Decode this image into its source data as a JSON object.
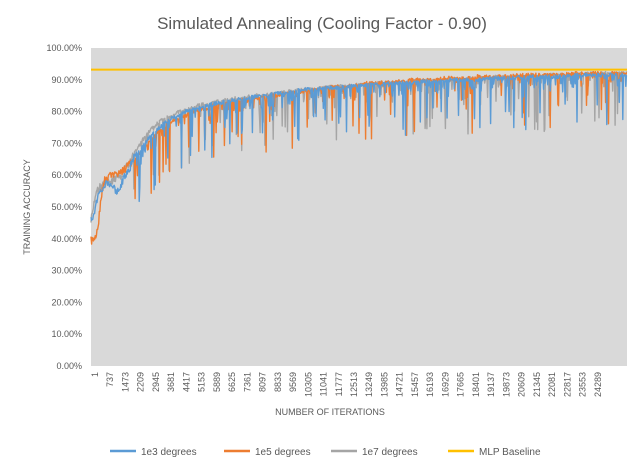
{
  "chart_data": {
    "type": "line",
    "title": "Simulated Annealing (Cooling Factor - 0.90)",
    "xlabel": "NUMBER OF ITERATIONS",
    "ylabel": "TRAINING ACCURACY",
    "ylim": [
      0,
      100
    ],
    "y_ticks": [
      "0.00%",
      "10.00%",
      "20.00%",
      "30.00%",
      "40.00%",
      "50.00%",
      "60.00%",
      "70.00%",
      "80.00%",
      "90.00%",
      "100.00%"
    ],
    "x_ticks": [
      "1",
      "737",
      "1473",
      "2209",
      "2945",
      "3681",
      "4417",
      "5153",
      "5889",
      "6625",
      "7361",
      "8097",
      "8833",
      "9569",
      "10305",
      "11041",
      "11777",
      "12513",
      "13249",
      "13985",
      "14721",
      "15457",
      "16193",
      "16929",
      "17665",
      "18401",
      "19137",
      "19873",
      "20609",
      "21345",
      "22081",
      "22817",
      "23553",
      "24289"
    ],
    "xlim": [
      1,
      25000
    ],
    "grid": false,
    "legend_position": "bottom",
    "series": [
      {
        "name": "1e3 degrees",
        "color": "#5B9BD5",
        "x": [
          1,
          100,
          200,
          300,
          450,
          600,
          800,
          1000,
          1200,
          1400,
          1600,
          1800,
          2000,
          2300,
          2600,
          2900,
          3200,
          3500,
          3800,
          4100,
          4400,
          4700,
          5000,
          5400,
          5800,
          6200,
          6600,
          7000,
          7500,
          8000,
          8500,
          9000,
          9500,
          10000,
          10500,
          11000,
          11500,
          12000,
          12500,
          13000,
          13500,
          14000,
          14500,
          15000,
          15500,
          16000,
          16500,
          17000,
          17500,
          18000,
          18500,
          19000,
          19500,
          20000,
          20500,
          21000,
          21500,
          22000,
          22500,
          23000,
          23500,
          24000,
          24500,
          25000
        ],
        "y": [
          46,
          47,
          50,
          53,
          55,
          57,
          58,
          56,
          55,
          57,
          60,
          62,
          66,
          68,
          71,
          73,
          75,
          77,
          78,
          79,
          80,
          80.5,
          81,
          82,
          82.5,
          83,
          83.5,
          84,
          84.5,
          85,
          85.5,
          86,
          86.5,
          87,
          87,
          87.5,
          87.5,
          88,
          88,
          88.5,
          88.5,
          89,
          89,
          89,
          89.5,
          89.5,
          90,
          90,
          90,
          90,
          90.5,
          90.5,
          90.5,
          91,
          91,
          91,
          91,
          91,
          91.5,
          91.5,
          91.5,
          91.5,
          91.5,
          91.5
        ]
      },
      {
        "name": "1e5 degrees",
        "color": "#ED7D31",
        "x": [
          1,
          100,
          200,
          300,
          400,
          500,
          600,
          800,
          1000,
          1200,
          1400,
          1600,
          1800,
          2000,
          2300,
          2600,
          2900,
          3200,
          3500,
          3800,
          4100,
          4400,
          4700,
          5000,
          5400,
          5800,
          6200,
          6600,
          7000,
          7500,
          8000,
          8500,
          9000,
          9500,
          10000,
          10500,
          11000,
          11500,
          12000,
          12500,
          13000,
          13500,
          14000,
          14500,
          15000,
          15500,
          16000,
          16500,
          17000,
          17500,
          18000,
          18500,
          19000,
          19500,
          20000,
          20500,
          21000,
          21500,
          22000,
          22500,
          23000,
          23500,
          24000,
          24500,
          25000
        ],
        "y": [
          39.5,
          39.5,
          41,
          42,
          48,
          54,
          58,
          59.5,
          60,
          60.5,
          61,
          62,
          63.5,
          65,
          67,
          70,
          72,
          74,
          76,
          77,
          78,
          79,
          80,
          80.5,
          81,
          82,
          82.5,
          83,
          83.5,
          84,
          84.5,
          85,
          85.5,
          86,
          86.5,
          87,
          87.5,
          88,
          88,
          88.5,
          89,
          89,
          89.5,
          89.5,
          90,
          90,
          90,
          90.5,
          90.5,
          90.5,
          91,
          91,
          91,
          91,
          91.5,
          91.5,
          91.5,
          91.5,
          91.5,
          92,
          92,
          92,
          92,
          92,
          92
        ]
      },
      {
        "name": "1e7 degrees",
        "color": "#A5A5A5",
        "x": [
          1,
          100,
          200,
          300,
          400,
          600,
          800,
          1000,
          1200,
          1400,
          1600,
          1800,
          2000,
          2300,
          2600,
          2900,
          3200,
          3500,
          3800,
          4100,
          4400,
          4700,
          5000,
          5400,
          5800,
          6200,
          6600,
          7000,
          7500,
          8000,
          8500,
          9000,
          9500,
          10000,
          10500,
          11000,
          11500,
          12000,
          12500,
          13000,
          13500,
          14000,
          14500,
          15000,
          15500,
          16000,
          16500,
          17000,
          17500,
          18000,
          18500,
          19000,
          19500,
          20000,
          20500,
          21000,
          21500,
          22000,
          22500,
          23000,
          23500,
          24000,
          24500,
          25000
        ],
        "y": [
          46,
          50,
          53,
          55,
          56,
          57,
          58,
          58.5,
          59,
          60,
          62,
          64,
          67,
          70,
          73,
          75,
          77,
          78,
          79,
          80,
          80.5,
          81,
          82,
          82.5,
          83,
          83.5,
          84,
          84.5,
          85,
          85,
          85.5,
          86,
          86.5,
          87,
          87,
          87.5,
          88,
          88,
          88.5,
          88.5,
          89,
          89,
          89,
          89.5,
          89.5,
          90,
          90,
          90,
          90.5,
          90.5,
          90.5,
          91,
          91,
          91,
          91,
          91.5,
          91.5,
          91.5,
          91.5,
          92,
          92,
          92,
          92,
          92
        ]
      },
      {
        "name": "MLP Baseline",
        "color": "#FFC000",
        "x": [
          1,
          25000
        ],
        "y": [
          93.2,
          93.2
        ]
      }
    ]
  }
}
